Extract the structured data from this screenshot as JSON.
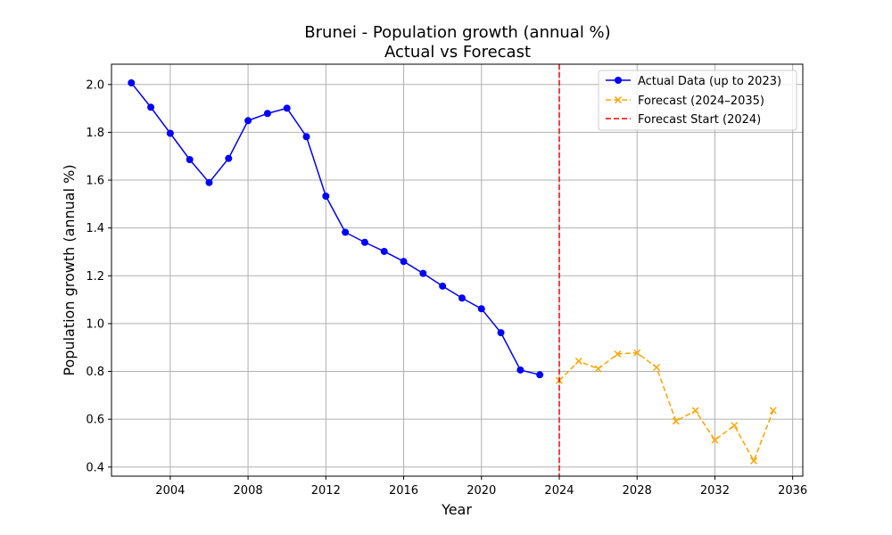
{
  "chart_data": {
    "type": "line",
    "title": "Brunei - Population growth (annual %)",
    "subtitle": "Actual vs Forecast",
    "xlabel": "Year",
    "ylabel": "Population growth (annual %)",
    "xlim": [
      2000.98,
      2036.52
    ],
    "ylim": [
      0.362,
      2.085
    ],
    "xticks": [
      2004,
      2008,
      2012,
      2016,
      2020,
      2024,
      2028,
      2032,
      2036
    ],
    "yticks": [
      0.4,
      0.6,
      0.8,
      1.0,
      1.2,
      1.4,
      1.6,
      1.8,
      2.0
    ],
    "ytick_labels": [
      "0.4",
      "0.6",
      "0.8",
      "1.0",
      "1.2",
      "1.4",
      "1.6",
      "1.8",
      "2.0"
    ],
    "grid": true,
    "legend_position": "top-right",
    "forecast_start_x": 2024,
    "series": [
      {
        "name": "Actual Data (up to 2023)",
        "style": "solid",
        "marker": "circle",
        "color": "#0000ff",
        "x": [
          2002,
          2003,
          2004,
          2005,
          2006,
          2007,
          2008,
          2009,
          2010,
          2011,
          2012,
          2013,
          2014,
          2015,
          2016,
          2017,
          2018,
          2019,
          2020,
          2021,
          2022,
          2023
        ],
        "y": [
          2.007,
          1.905,
          1.796,
          1.686,
          1.59,
          1.691,
          1.849,
          1.879,
          1.901,
          1.782,
          1.533,
          1.382,
          1.34,
          1.302,
          1.26,
          1.21,
          1.157,
          1.107,
          1.062,
          0.962,
          0.806,
          0.786
        ]
      },
      {
        "name": "Forecast (2024–2035)",
        "style": "dashed",
        "marker": "x",
        "color": "#ffa500",
        "x": [
          2024,
          2025,
          2026,
          2027,
          2028,
          2029,
          2030,
          2031,
          2032,
          2033,
          2034,
          2035
        ],
        "y": [
          0.762,
          0.843,
          0.811,
          0.873,
          0.878,
          0.817,
          0.592,
          0.636,
          0.513,
          0.574,
          0.426,
          0.637
        ]
      },
      {
        "name": "Forecast Start (2024)",
        "style": "dashed",
        "marker": "none",
        "color": "#ff0000",
        "vertical_line_x": 2024
      }
    ]
  }
}
